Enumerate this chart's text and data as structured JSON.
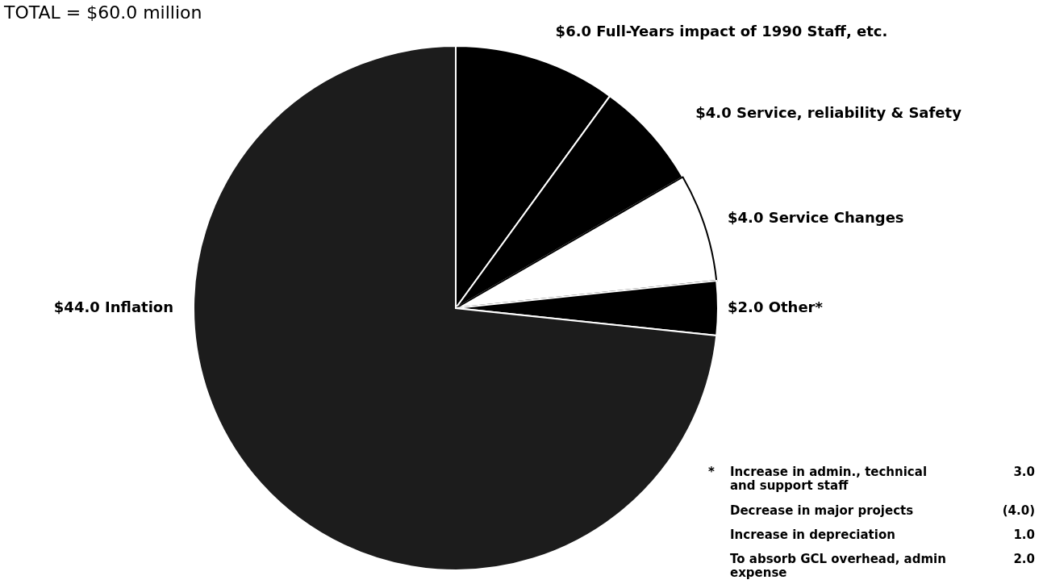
{
  "chart_data": {
    "type": "pie",
    "title": "TOTAL = $60.0 million",
    "categories": [
      "Full-Years impact of 1990 Staff, etc.",
      "Service, reliability & Safety",
      "Service Changes",
      "Other*",
      "Inflation"
    ],
    "values": [
      6,
      4,
      4,
      2,
      44
    ],
    "value_labels": [
      "$6.0",
      "$4.0",
      "$4.0",
      "$2.0",
      "$44.0"
    ],
    "colors": [
      "#000000",
      "#000000",
      "#ffffff",
      "#000000",
      "#1c1c1c"
    ],
    "legend": false,
    "annotations": [
      "*",
      "Increase in admin., technical and support staff",
      "3.0",
      "Decrease in major projects",
      "(4.0)",
      "Increase in depreciation",
      "1.0",
      "To absorb GCL  overhead, admin expense",
      "2.0"
    ]
  }
}
